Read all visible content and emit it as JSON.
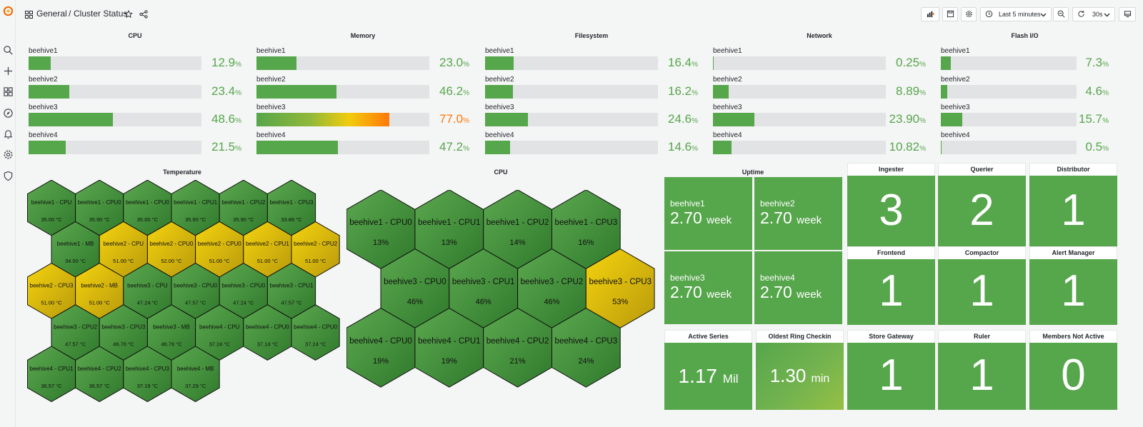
{
  "breadcrumb": {
    "folder": "General",
    "separator": "/",
    "dashboard": "Cluster Status"
  },
  "toolbar": {
    "time_range": "Last 5 minutes",
    "refresh": "30s"
  },
  "bar_gauges": [
    {
      "title": "CPU",
      "rows": [
        {
          "label": "beehive1",
          "value": "12.9",
          "unit": "%",
          "fraction": 0.129
        },
        {
          "label": "beehive2",
          "value": "23.4",
          "unit": "%",
          "fraction": 0.234
        },
        {
          "label": "beehive3",
          "value": "48.6",
          "unit": "%",
          "fraction": 0.486
        },
        {
          "label": "beehive4",
          "value": "21.5",
          "unit": "%",
          "fraction": 0.215
        }
      ]
    },
    {
      "title": "Memory",
      "rows": [
        {
          "label": "beehive1",
          "value": "23.0",
          "unit": "%",
          "fraction": 0.23
        },
        {
          "label": "beehive2",
          "value": "46.2",
          "unit": "%",
          "fraction": 0.462
        },
        {
          "label": "beehive3",
          "value": "77.0",
          "unit": "%",
          "fraction": 0.77,
          "hot": true
        },
        {
          "label": "beehive4",
          "value": "47.2",
          "unit": "%",
          "fraction": 0.472
        }
      ]
    },
    {
      "title": "Filesystem",
      "rows": [
        {
          "label": "beehive1",
          "value": "16.4",
          "unit": "%",
          "fraction": 0.164
        },
        {
          "label": "beehive2",
          "value": "16.2",
          "unit": "%",
          "fraction": 0.162
        },
        {
          "label": "beehive3",
          "value": "24.6",
          "unit": "%",
          "fraction": 0.246
        },
        {
          "label": "beehive4",
          "value": "14.6",
          "unit": "%",
          "fraction": 0.146
        }
      ]
    },
    {
      "title": "Network",
      "rows": [
        {
          "label": "beehive1",
          "value": "0.25",
          "unit": "%",
          "fraction": 0.0025
        },
        {
          "label": "beehive2",
          "value": "8.89",
          "unit": "%",
          "fraction": 0.0889
        },
        {
          "label": "beehive3",
          "value": "23.90",
          "unit": "%",
          "fraction": 0.239
        },
        {
          "label": "beehive4",
          "value": "10.82",
          "unit": "%",
          "fraction": 0.1082
        }
      ]
    },
    {
      "title": "Flash I/O",
      "rows": [
        {
          "label": "beehive1",
          "value": "7.3",
          "unit": "%",
          "fraction": 0.073
        },
        {
          "label": "beehive2",
          "value": "4.6",
          "unit": "%",
          "fraction": 0.046
        },
        {
          "label": "beehive3",
          "value": "15.7",
          "unit": "%",
          "fraction": 0.157
        },
        {
          "label": "beehive4",
          "value": "0.5",
          "unit": "%",
          "fraction": 0.005
        }
      ]
    }
  ],
  "temperature": {
    "title": "Temperature",
    "rows": [
      [
        {
          "name": "beehive1 - CPU",
          "value": "35.00 °C",
          "level": "green"
        },
        {
          "name": "beehive1 - CPU0",
          "value": "35.90 °C",
          "level": "green"
        },
        {
          "name": "beehive1 - CPU0",
          "value": "35.00 °C",
          "level": "green"
        },
        {
          "name": "beehive1 - CPU1",
          "value": "35.90 °C",
          "level": "green"
        },
        {
          "name": "beehive1 - CPU2",
          "value": "35.90 °C",
          "level": "green"
        },
        {
          "name": "beehive1 - CPU3",
          "value": "33.86 °C",
          "level": "green"
        }
      ],
      [
        {
          "name": "beehive1 - MB",
          "value": "34.00 °C",
          "level": "green"
        },
        {
          "name": "beehive2 - CPU",
          "value": "51.00 °C",
          "level": "yellow"
        },
        {
          "name": "beehive2 - CPU0",
          "value": "52.00 °C",
          "level": "yellow"
        },
        {
          "name": "beehive2 - CPU0",
          "value": "51.00 °C",
          "level": "yellow"
        },
        {
          "name": "beehive2 - CPU1",
          "value": "51.00 °C",
          "level": "yellow"
        },
        {
          "name": "beehive2 - CPU2",
          "value": "51.00 °C",
          "level": "yellow"
        }
      ],
      [
        {
          "name": "beehive2 - CPU3",
          "value": "51.00 °C",
          "level": "yellow"
        },
        {
          "name": "beehive2 - MB",
          "value": "51.00 °C",
          "level": "yellow"
        },
        {
          "name": "beehive3 - CPU",
          "value": "47.24 °C",
          "level": "green"
        },
        {
          "name": "beehive3 - CPU0",
          "value": "47.57 °C",
          "level": "green"
        },
        {
          "name": "beehive3 - CPU0",
          "value": "47.24 °C",
          "level": "green"
        },
        {
          "name": "beehive3 - CPU1",
          "value": "47.57 °C",
          "level": "green"
        }
      ],
      [
        {
          "name": "beehive3 - CPU2",
          "value": "47.57 °C",
          "level": "green"
        },
        {
          "name": "beehive3 - CPU3",
          "value": "46.76 °C",
          "level": "green"
        },
        {
          "name": "beehive3 - MB",
          "value": "46.76 °C",
          "level": "green"
        },
        {
          "name": "beehive4 - CPU",
          "value": "37.24 °C",
          "level": "green"
        },
        {
          "name": "beehive4 - CPU0",
          "value": "37.14 °C",
          "level": "green"
        },
        {
          "name": "beehive4 - CPU0",
          "value": "37.24 °C",
          "level": "green"
        }
      ],
      [
        {
          "name": "beehive4 - CPU1",
          "value": "36.57 °C",
          "level": "green"
        },
        {
          "name": "beehive4 - CPU2",
          "value": "36.57 °C",
          "level": "green"
        },
        {
          "name": "beehive4 - CPU3",
          "value": "37.19 °C",
          "level": "green"
        },
        {
          "name": "beehive4 - MB",
          "value": "37.29 °C",
          "level": "green"
        }
      ]
    ]
  },
  "cpu_hex": {
    "title": "CPU",
    "rows": [
      [
        {
          "name": "beehive1 - CPU0",
          "value": "13%",
          "level": "green"
        },
        {
          "name": "beehive1 - CPU1",
          "value": "13%",
          "level": "green"
        },
        {
          "name": "beehive1 - CPU2",
          "value": "14%",
          "level": "green"
        },
        {
          "name": "beehive1 - CPU3",
          "value": "16%",
          "level": "green"
        }
      ],
      [
        {
          "name": "beehive3 - CPU0",
          "value": "46%",
          "level": "green"
        },
        {
          "name": "beehive3 - CPU1",
          "value": "46%",
          "level": "green"
        },
        {
          "name": "beehive3 - CPU2",
          "value": "46%",
          "level": "green"
        },
        {
          "name": "beehive3 - CPU3",
          "value": "53%",
          "level": "yellow"
        }
      ],
      [
        {
          "name": "beehive4 - CPU0",
          "value": "19%",
          "level": "green"
        },
        {
          "name": "beehive4 - CPU1",
          "value": "19%",
          "level": "green"
        },
        {
          "name": "beehive4 - CPU2",
          "value": "21%",
          "level": "green"
        },
        {
          "name": "beehive4 - CPU3",
          "value": "24%",
          "level": "green"
        }
      ]
    ]
  },
  "uptime": {
    "title": "Uptime",
    "tiles": [
      {
        "name": "beehive1",
        "value": "2.70",
        "unit": "week"
      },
      {
        "name": "beehive2",
        "value": "2.70",
        "unit": "week"
      },
      {
        "name": "beehive3",
        "value": "2.70",
        "unit": "week"
      },
      {
        "name": "beehive4",
        "value": "2.70",
        "unit": "week"
      }
    ]
  },
  "stats": {
    "ingester": {
      "title": "Ingester",
      "value": "3"
    },
    "querier": {
      "title": "Querier",
      "value": "2"
    },
    "distributor": {
      "title": "Distributor",
      "value": "1"
    },
    "frontend": {
      "title": "Frontend",
      "value": "1"
    },
    "compactor": {
      "title": "Compactor",
      "value": "1"
    },
    "alert_manager": {
      "title": "Alert Manager",
      "value": "1"
    },
    "active_series": {
      "title": "Active Series",
      "value": "1.17",
      "unit": "Mil"
    },
    "oldest_ring": {
      "title": "Oldest Ring Checkin",
      "value": "1.30",
      "unit": "min"
    },
    "store_gateway": {
      "title": "Store Gateway",
      "value": "1"
    },
    "ruler": {
      "title": "Ruler",
      "value": "1"
    },
    "members_not_active": {
      "title": "Members Not Active",
      "value": "0"
    }
  },
  "colors": {
    "green": "#56a64b",
    "yellow": "#f2cc0c",
    "orange": "#ff780a",
    "track": "#e2e3e4"
  },
  "icons": [
    "grafana-logo-icon",
    "search-icon",
    "plus-icon",
    "dashboards-icon",
    "explore-icon",
    "alerting-icon",
    "gear-icon",
    "shield-icon",
    "grid-icon",
    "star-icon",
    "share-icon",
    "add-panel-icon",
    "save-icon",
    "settings-icon",
    "clock-icon",
    "chevron-down-icon",
    "zoom-out-icon",
    "refresh-icon",
    "tv-mode-icon"
  ]
}
